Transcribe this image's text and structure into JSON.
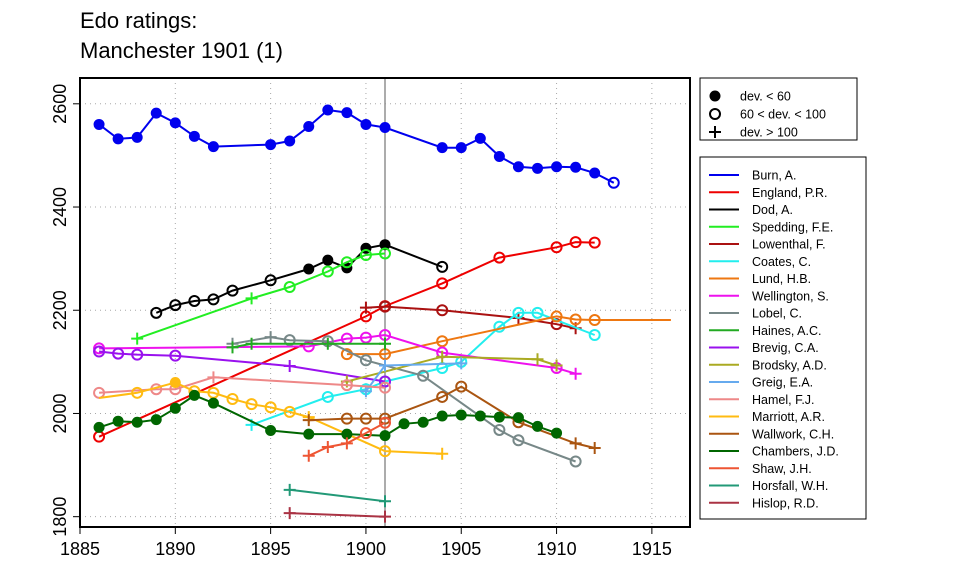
{
  "chart_data": {
    "type": "line",
    "title": "Edo ratings:",
    "subtitle": "Manchester 1901 (1)",
    "xlim": [
      1885,
      1917
    ],
    "ylim": [
      1780,
      2650
    ],
    "x_ticks": [
      1885,
      1890,
      1895,
      1900,
      1905,
      1910,
      1915
    ],
    "y_ticks": [
      1800,
      2000,
      2200,
      2400,
      2600
    ],
    "event_year": 1901,
    "grid": true,
    "marker_legend": [
      {
        "symbol": "filled-circle",
        "label": "dev. < 60"
      },
      {
        "symbol": "open-circle",
        "label": "60 < dev. < 100"
      },
      {
        "symbol": "plus",
        "label": "dev. > 100"
      }
    ],
    "series": [
      {
        "name": "Burn, A.",
        "color": "#0000ee",
        "points": [
          [
            1886,
            2560,
            "f"
          ],
          [
            1887,
            2532,
            "f"
          ],
          [
            1888,
            2535,
            "f"
          ],
          [
            1889,
            2582,
            "f"
          ],
          [
            1890,
            2563,
            "f"
          ],
          [
            1891,
            2537,
            "f"
          ],
          [
            1892,
            2517,
            "f"
          ],
          [
            1895,
            2521,
            "f"
          ],
          [
            1896,
            2528,
            "f"
          ],
          [
            1897,
            2556,
            "f"
          ],
          [
            1898,
            2588,
            "f"
          ],
          [
            1899,
            2583,
            "f"
          ],
          [
            1900,
            2560,
            "f"
          ],
          [
            1901,
            2554,
            "f"
          ],
          [
            1904,
            2515,
            "f"
          ],
          [
            1905,
            2515,
            "f"
          ],
          [
            1906,
            2533,
            "f"
          ],
          [
            1907,
            2498,
            "f"
          ],
          [
            1908,
            2478,
            "f"
          ],
          [
            1909,
            2475,
            "f"
          ],
          [
            1910,
            2478,
            "f"
          ],
          [
            1911,
            2477,
            "f"
          ],
          [
            1912,
            2466,
            "f"
          ],
          [
            1913,
            2447,
            "o"
          ]
        ]
      },
      {
        "name": "England, P.R.",
        "color": "#ee0000",
        "points": [
          [
            1886,
            1955,
            "o"
          ],
          [
            1900,
            2188,
            "o"
          ],
          [
            1901,
            2208,
            "o"
          ],
          [
            1904,
            2252,
            "o"
          ],
          [
            1907,
            2302,
            "o"
          ],
          [
            1910,
            2322,
            "o"
          ],
          [
            1911,
            2332,
            "o"
          ],
          [
            1912,
            2331,
            "o"
          ]
        ]
      },
      {
        "name": "Dod, A.",
        "color": "#000000",
        "points": [
          [
            1889,
            2195,
            "o"
          ],
          [
            1890,
            2210,
            "o"
          ],
          [
            1891,
            2218,
            "o"
          ],
          [
            1892,
            2221,
            "o"
          ],
          [
            1893,
            2238,
            "o"
          ],
          [
            1895,
            2258,
            "o"
          ],
          [
            1897,
            2280,
            "f"
          ],
          [
            1898,
            2297,
            "f"
          ],
          [
            1899,
            2282,
            "f"
          ],
          [
            1900,
            2320,
            "f"
          ],
          [
            1901,
            2327,
            "f"
          ],
          [
            1904,
            2284,
            "o"
          ]
        ]
      },
      {
        "name": "Spedding, F.E.",
        "color": "#22ee22",
        "points": [
          [
            1888,
            2145,
            "p"
          ],
          [
            1894,
            2223,
            "p"
          ],
          [
            1896,
            2245,
            "o"
          ],
          [
            1898,
            2275,
            "o"
          ],
          [
            1899,
            2293,
            "o"
          ],
          [
            1900,
            2307,
            "o"
          ],
          [
            1901,
            2310,
            "o"
          ]
        ]
      },
      {
        "name": "Lowenthal, F.",
        "color": "#aa1111",
        "points": [
          [
            1900,
            2205,
            "p"
          ],
          [
            1901,
            2207,
            "o"
          ],
          [
            1904,
            2200,
            "o"
          ],
          [
            1908,
            2185,
            "p"
          ],
          [
            1910,
            2173,
            "o"
          ],
          [
            1911,
            2165,
            "p"
          ]
        ]
      },
      {
        "name": "Coates, C.",
        "color": "#22eeee",
        "points": [
          [
            1894,
            1978,
            "p"
          ],
          [
            1898,
            2032,
            "o"
          ],
          [
            1900,
            2047,
            "o"
          ],
          [
            1901,
            2062,
            "o"
          ],
          [
            1904,
            2088,
            "o"
          ],
          [
            1905,
            2100,
            "o"
          ],
          [
            1907,
            2168,
            "o"
          ],
          [
            1908,
            2195,
            "o"
          ],
          [
            1909,
            2195,
            "o"
          ],
          [
            1912,
            2152,
            "o"
          ]
        ]
      },
      {
        "name": "Lund, H.B.",
        "color": "#ee7711",
        "points": [
          [
            1899,
            2115,
            "o"
          ],
          [
            1901,
            2115,
            "o"
          ],
          [
            1904,
            2140,
            "o"
          ],
          [
            1910,
            2188,
            "o"
          ],
          [
            1911,
            2182,
            "o"
          ],
          [
            1912,
            2181,
            "o"
          ],
          [
            1916,
            2181,
            "n"
          ]
        ]
      },
      {
        "name": "Wellington, S.",
        "color": "#ee11ee",
        "points": [
          [
            1886,
            2126,
            "o"
          ],
          [
            1897,
            2130,
            "o"
          ],
          [
            1899,
            2145,
            "o"
          ],
          [
            1900,
            2147,
            "o"
          ],
          [
            1901,
            2152,
            "o"
          ],
          [
            1904,
            2118,
            "o"
          ],
          [
            1910,
            2088,
            "o"
          ],
          [
            1911,
            2077,
            "p"
          ]
        ]
      },
      {
        "name": "Lobel, C.",
        "color": "#778888",
        "points": [
          [
            1893,
            2135,
            "p"
          ],
          [
            1895,
            2148,
            "p"
          ],
          [
            1896,
            2142,
            "o"
          ],
          [
            1898,
            2140,
            "o"
          ],
          [
            1900,
            2103,
            "o"
          ],
          [
            1903,
            2073,
            "o"
          ],
          [
            1907,
            1968,
            "o"
          ],
          [
            1908,
            1948,
            "o"
          ],
          [
            1911,
            1907,
            "o"
          ]
        ]
      },
      {
        "name": "Haines, A.C.",
        "color": "#22aa22",
        "points": [
          [
            1893,
            2128,
            "p"
          ],
          [
            1894,
            2135,
            "p"
          ],
          [
            1898,
            2135,
            "p"
          ],
          [
            1901,
            2135,
            "p"
          ]
        ]
      },
      {
        "name": "Brevig, C.A.",
        "color": "#9911ee",
        "points": [
          [
            1886,
            2120,
            "o"
          ],
          [
            1887,
            2116,
            "o"
          ],
          [
            1888,
            2114,
            "o"
          ],
          [
            1890,
            2112,
            "o"
          ],
          [
            1896,
            2092,
            "p"
          ],
          [
            1901,
            2062,
            "o"
          ]
        ]
      },
      {
        "name": "Brodsky, A.D.",
        "color": "#aaaa22",
        "points": [
          [
            1899,
            2062,
            "p"
          ],
          [
            1904,
            2110,
            "p"
          ],
          [
            1909,
            2105,
            "p"
          ],
          [
            1910,
            2093,
            "p"
          ]
        ]
      },
      {
        "name": "Greig, E.A.",
        "color": "#66aaee",
        "points": [
          [
            1900,
            2043,
            "p"
          ],
          [
            1901,
            2093,
            "p"
          ],
          [
            1905,
            2097,
            "p"
          ]
        ]
      },
      {
        "name": "Hamel, F.J.",
        "color": "#ee8888",
        "points": [
          [
            1886,
            2040,
            "o"
          ],
          [
            1889,
            2047,
            "o"
          ],
          [
            1890,
            2047,
            "o"
          ],
          [
            1892,
            2070,
            "p"
          ],
          [
            1899,
            2055,
            "o"
          ],
          [
            1901,
            2050,
            "o"
          ]
        ]
      },
      {
        "name": "Marriott, A.R.",
        "color": "#ffbb11",
        "points": [
          [
            1886,
            2030,
            "n"
          ],
          [
            1888,
            2040,
            "o"
          ],
          [
            1890,
            2060,
            "f"
          ],
          [
            1891,
            2043,
            "o"
          ],
          [
            1892,
            2040,
            "o"
          ],
          [
            1893,
            2028,
            "o"
          ],
          [
            1894,
            2018,
            "o"
          ],
          [
            1895,
            2012,
            "o"
          ],
          [
            1896,
            2003,
            "o"
          ],
          [
            1897,
            1993,
            "p"
          ],
          [
            1901,
            1927,
            "o"
          ],
          [
            1904,
            1922,
            "p"
          ]
        ]
      },
      {
        "name": "Wallwork, C.H.",
        "color": "#aa5511",
        "points": [
          [
            1897,
            1987,
            "p"
          ],
          [
            1899,
            1990,
            "o"
          ],
          [
            1900,
            1990,
            "o"
          ],
          [
            1901,
            1990,
            "o"
          ],
          [
            1904,
            2032,
            "o"
          ],
          [
            1905,
            2052,
            "o"
          ],
          [
            1908,
            1983,
            "o"
          ],
          [
            1911,
            1942,
            "p"
          ],
          [
            1912,
            1933,
            "p"
          ]
        ]
      },
      {
        "name": "Chambers, J.D.",
        "color": "#006600",
        "points": [
          [
            1886,
            1973,
            "f"
          ],
          [
            1887,
            1985,
            "f"
          ],
          [
            1888,
            1983,
            "f"
          ],
          [
            1889,
            1988,
            "f"
          ],
          [
            1890,
            2010,
            "f"
          ],
          [
            1891,
            2035,
            "f"
          ],
          [
            1892,
            2020,
            "f"
          ],
          [
            1895,
            1967,
            "f"
          ],
          [
            1897,
            1960,
            "f"
          ],
          [
            1899,
            1960,
            "f"
          ],
          [
            1901,
            1957,
            "f"
          ],
          [
            1902,
            1980,
            "f"
          ],
          [
            1903,
            1983,
            "f"
          ],
          [
            1904,
            1995,
            "f"
          ],
          [
            1905,
            1997,
            "f"
          ],
          [
            1906,
            1995,
            "f"
          ],
          [
            1907,
            1993,
            "f"
          ],
          [
            1908,
            1992,
            "f"
          ],
          [
            1909,
            1975,
            "f"
          ],
          [
            1910,
            1962,
            "f"
          ]
        ]
      },
      {
        "name": "Shaw, J.H.",
        "color": "#ee5533",
        "points": [
          [
            1897,
            1918,
            "p"
          ],
          [
            1898,
            1935,
            "p"
          ],
          [
            1899,
            1942,
            "p"
          ],
          [
            1900,
            1962,
            "o"
          ],
          [
            1901,
            1982,
            "o"
          ]
        ]
      },
      {
        "name": "Horsfall, W.H.",
        "color": "#229977",
        "points": [
          [
            1896,
            1852,
            "p"
          ],
          [
            1901,
            1830,
            "p"
          ]
        ]
      },
      {
        "name": "Hislop, R.D.",
        "color": "#aa3344",
        "points": [
          [
            1896,
            1807,
            "p"
          ],
          [
            1901,
            1800,
            "p"
          ]
        ]
      }
    ]
  }
}
